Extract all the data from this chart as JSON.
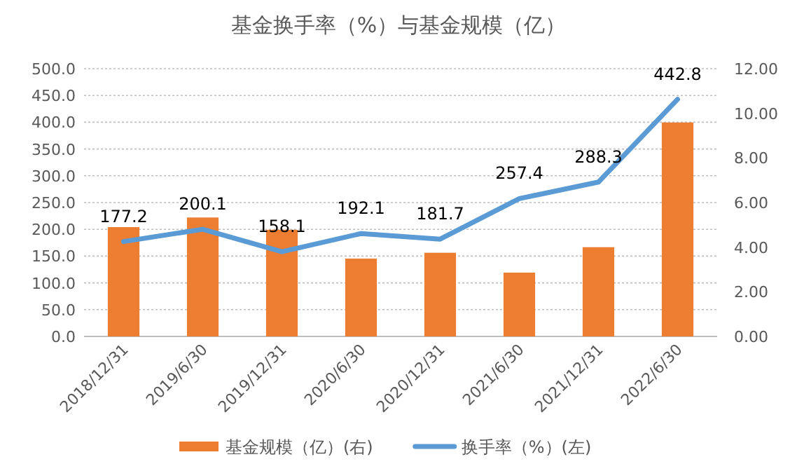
{
  "chart_data": {
    "type": "bar",
    "title": "基金换手率（%）与基金规模（亿）",
    "categories": [
      "2018/12/31",
      "2019/6/30",
      "2019/12/31",
      "2020/6/30",
      "2020/12/31",
      "2021/6/30",
      "2021/12/31",
      "2022/6/30"
    ],
    "series": [
      {
        "name": "基金规模（亿）(右)",
        "axis": "y2",
        "color": "#ed7d31",
        "values": [
          4.9,
          5.33,
          4.78,
          3.49,
          3.75,
          2.86,
          4.0,
          9.59
        ]
      },
      {
        "name": "换手率（%）(左)",
        "type": "line",
        "color": "#5b9bd5",
        "values": [
          177.2,
          200.1,
          158.1,
          192.1,
          181.7,
          257.4,
          288.3,
          442.8
        ],
        "value_labels": [
          "177.2",
          "200.1",
          "158.1",
          "192.1",
          "181.7",
          "257.4",
          "288.3",
          "442.8"
        ]
      }
    ],
    "ylim": [
      0,
      500
    ],
    "yticks": [
      {
        "value": 0,
        "label": "0.0"
      },
      {
        "value": 50,
        "label": "50.0"
      },
      {
        "value": 100,
        "label": "100.0"
      },
      {
        "value": 150,
        "label": "150.0"
      },
      {
        "value": 200,
        "label": "200.0"
      },
      {
        "value": 250,
        "label": "250.0"
      },
      {
        "value": 300,
        "label": "300.0"
      },
      {
        "value": 350,
        "label": "350.0"
      },
      {
        "value": 400,
        "label": "400.0"
      },
      {
        "value": 450,
        "label": "450.0"
      },
      {
        "value": 500,
        "label": "500.0"
      }
    ],
    "y2lim": [
      0,
      12
    ],
    "y2ticks": [
      {
        "value": 0,
        "label": "0.00"
      },
      {
        "value": 2,
        "label": "2.00"
      },
      {
        "value": 4,
        "label": "4.00"
      },
      {
        "value": 6,
        "label": "6.00"
      },
      {
        "value": 8,
        "label": "8.00"
      },
      {
        "value": 10,
        "label": "10.00"
      },
      {
        "value": 12,
        "label": "12.00"
      }
    ],
    "grid": "y",
    "legend": "bottom",
    "marker": "none",
    "line_style": "solid"
  }
}
